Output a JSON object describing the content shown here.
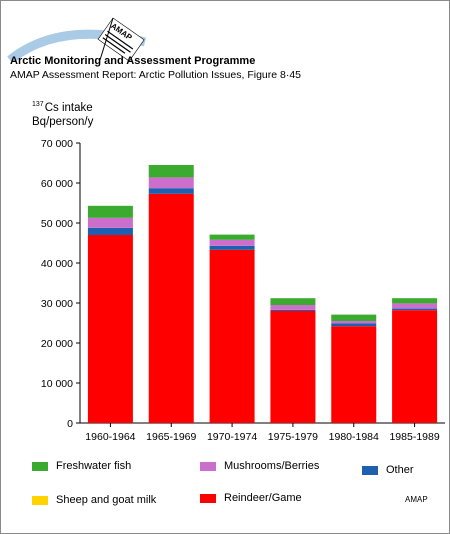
{
  "header": {
    "title": "Arctic Monitoring and Assessment Programme",
    "subtitle": "AMAP Assessment Report: Arctic Pollution Issues, Figure 8·45",
    "logo_text": "AMAP"
  },
  "credit": "AMAP",
  "colors": {
    "Reindeer/Game": "#ff0000",
    "Other": "#1e5fb0",
    "Mushrooms/Berries": "#cc6fcc",
    "Freshwater fish": "#3aab2f",
    "Sheep and goat milk": "#ffd200"
  },
  "chart_data": {
    "type": "bar",
    "stacked": true,
    "ylabel_sup": "137",
    "ylabel_line1": "Cs intake",
    "ylabel_line2": "Bq/person/y",
    "ylim": [
      0,
      70000
    ],
    "yticks": [
      0,
      10000,
      20000,
      30000,
      40000,
      50000,
      60000,
      70000
    ],
    "ytick_labels": [
      "0",
      "10 000",
      "20 000",
      "30 000",
      "40 000",
      "50 000",
      "60 000",
      "70 000"
    ],
    "categories": [
      "1960-1964",
      "1965-1969",
      "1970-1974",
      "1975-1979",
      "1980-1984",
      "1985-1989"
    ],
    "series": [
      {
        "name": "Reindeer/Game",
        "values": [
          47000,
          57300,
          43300,
          28000,
          24200,
          28200
        ]
      },
      {
        "name": "Other",
        "values": [
          1800,
          1400,
          1000,
          300,
          700,
          400
        ]
      },
      {
        "name": "Mushrooms/Berries",
        "values": [
          2500,
          2700,
          1500,
          1200,
          600,
          1300
        ]
      },
      {
        "name": "Freshwater fish",
        "values": [
          3000,
          3100,
          1300,
          1700,
          1600,
          1300
        ]
      }
    ],
    "legend": [
      "Freshwater fish",
      "Mushrooms/Berries",
      "Other",
      "Sheep and goat milk",
      "Reindeer/Game"
    ],
    "legend_position": "bottom",
    "grid": false
  }
}
